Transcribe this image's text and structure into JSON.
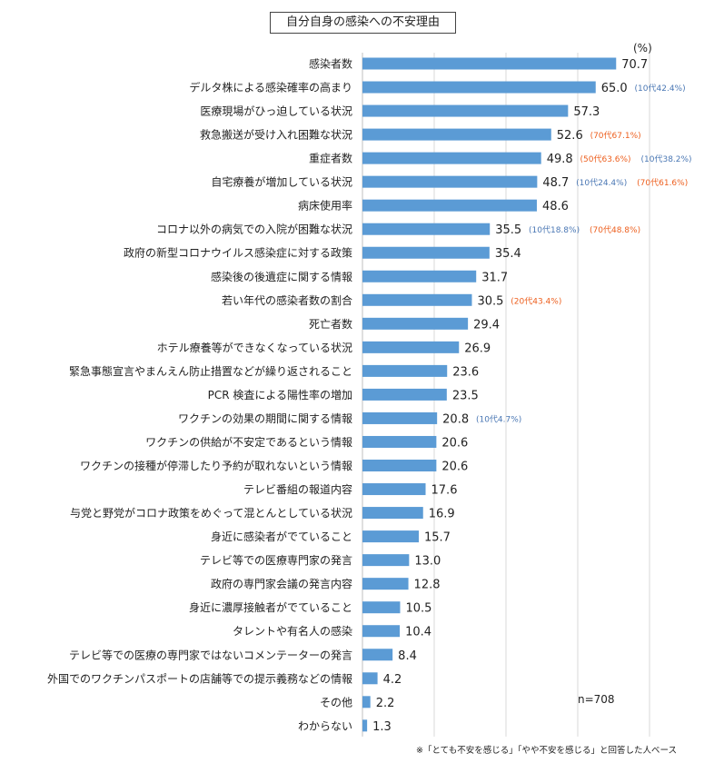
{
  "chart_data": {
    "type": "bar",
    "orientation": "horizontal",
    "title": "自分自身の感染への不安理由",
    "unit": "(%)",
    "sample_note": "n=708",
    "footnote": "※「とても不安を感じる」「やや不安を感じる」と回答した人ベース",
    "xlim": [
      0,
      100
    ],
    "grid": true,
    "colors": {
      "bar": "#5b9bd5",
      "note_blue": "#4a77b4",
      "note_orange": "#ed5f1e",
      "text": "#222222",
      "grid": "#d9d9d9"
    },
    "categories": [
      "感染者数",
      "デルタ株による感染確率の高まり",
      "医療現場がひっ迫している状況",
      "救急搬送が受け入れ困難な状況",
      "重症者数",
      "自宅療養が増加している状況",
      "病床使用率",
      "コロナ以外の病気での入院が困難な状況",
      "政府の新型コロナウイルス感染症に対する政策",
      "感染後の後遺症に関する情報",
      "若い年代の感染者数の割合",
      "死亡者数",
      "ホテル療養等ができなくなっている状況",
      "緊急事態宣言やまんえん防止措置などが繰り返されること",
      "PCR 検査による陽性率の増加",
      "ワクチンの効果の期間に関する情報",
      "ワクチンの供給が不安定であるという情報",
      "ワクチンの接種が停滞したり予約が取れないという情報",
      "テレビ番組の報道内容",
      "与党と野党がコロナ政策をめぐって混とんとしている状況",
      "身近に感染者がでていること",
      "テレビ等での医療専門家の発言",
      "政府の専門家会議の発言内容",
      "身近に濃厚接触者がでていること",
      "タレントや有名人の感染",
      "テレビ等での医療の専門家ではないコメンテーターの発言",
      "外国でのワクチンパスポートの店舗等での提示義務などの情報",
      "その他",
      "わからない"
    ],
    "values": [
      70.7,
      65.0,
      57.3,
      52.6,
      49.8,
      48.7,
      48.6,
      35.5,
      35.4,
      31.7,
      30.5,
      29.4,
      26.9,
      23.6,
      23.5,
      20.8,
      20.6,
      20.6,
      17.6,
      16.9,
      15.7,
      13.0,
      12.8,
      10.5,
      10.4,
      8.4,
      4.2,
      2.2,
      1.3
    ],
    "value_labels": [
      "70.7",
      "65.0",
      "57.3",
      "52.6",
      "49.8",
      "48.7",
      "48.6",
      "35.5",
      "35.4",
      "31.7",
      "30.5",
      "29.4",
      "26.9",
      "23.6",
      "23.5",
      "20.8",
      "20.6",
      "20.6",
      "17.6",
      "16.9",
      "15.7",
      "13.0",
      "12.8",
      "10.5",
      "10.4",
      "8.4",
      "4.2",
      "2.2",
      "1.3"
    ],
    "annotations": [
      {
        "index": 1,
        "notes": [
          {
            "text": "(10代42.4%)",
            "color": "blue"
          }
        ]
      },
      {
        "index": 3,
        "notes": [
          {
            "text": "(70代67.1%)",
            "color": "orange"
          }
        ]
      },
      {
        "index": 4,
        "notes": [
          {
            "text": "(50代63.6%)",
            "color": "orange"
          },
          {
            "text": "(10代38.2%)",
            "color": "blue"
          }
        ]
      },
      {
        "index": 5,
        "notes": [
          {
            "text": "(10代24.4%)",
            "color": "blue"
          },
          {
            "text": "(70代61.6%)",
            "color": "orange"
          }
        ]
      },
      {
        "index": 7,
        "notes": [
          {
            "text": "(10代18.8%)",
            "color": "blue"
          },
          {
            "text": "(70代48.8%)",
            "color": "orange"
          }
        ]
      },
      {
        "index": 10,
        "notes": [
          {
            "text": "(20代43.4%)",
            "color": "orange"
          }
        ]
      },
      {
        "index": 15,
        "notes": [
          {
            "text": "(10代4.7%)",
            "color": "blue"
          }
        ]
      }
    ]
  }
}
